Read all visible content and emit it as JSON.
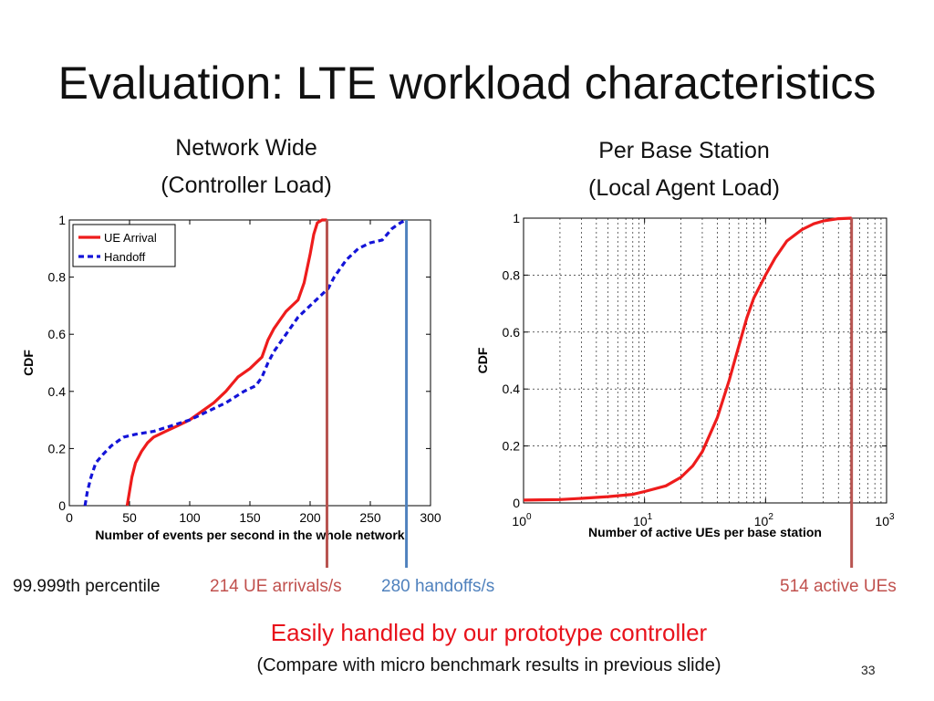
{
  "slide": {
    "title": "Evaluation: LTE workload characteristics",
    "left_subtitle": [
      "Network Wide",
      "(Controller Load)"
    ],
    "right_subtitle": [
      "Per Base Station",
      "(Local Agent Load)"
    ],
    "percentile_label": "99.999th percentile",
    "ue_arrivals": "214 UE arrivals/s",
    "handoffs": "280 handoffs/s",
    "active_ues": "514 active UEs",
    "highlight": "Easily handled by our prototype controller",
    "compare": "(Compare with micro benchmark results in previous slide)",
    "page_number": "33"
  },
  "colors": {
    "red_curve": "#ee1c1c",
    "blue_curve": "#1414d8",
    "red_marker": "#b85450",
    "blue_marker": "#4f81bd",
    "red_text": "#c0504d",
    "blue_text": "#4f81bd",
    "highlight_text": "#e8121b"
  },
  "chart_data": [
    {
      "type": "line",
      "xlabel": "Number of events per second in the whole network",
      "ylabel": "CDF",
      "xlim": [
        0,
        300
      ],
      "ylim": [
        0,
        1
      ],
      "xticks": [
        0,
        50,
        100,
        150,
        200,
        250,
        300
      ],
      "yticks": [
        "0",
        "0.2",
        "0.4",
        "0.6",
        "0.8",
        "1"
      ],
      "grid": false,
      "legend": "top-left",
      "series": [
        {
          "name": "UE Arrival",
          "style": "solid",
          "color": "#ee1c1c",
          "x": [
            48,
            50,
            52,
            55,
            60,
            65,
            70,
            80,
            90,
            100,
            110,
            120,
            130,
            140,
            150,
            160,
            165,
            170,
            175,
            180,
            185,
            190,
            195,
            200,
            203,
            206,
            210,
            214
          ],
          "y": [
            0,
            0.05,
            0.1,
            0.15,
            0.19,
            0.22,
            0.24,
            0.26,
            0.28,
            0.3,
            0.33,
            0.36,
            0.4,
            0.45,
            0.48,
            0.52,
            0.58,
            0.62,
            0.65,
            0.68,
            0.7,
            0.72,
            0.78,
            0.88,
            0.95,
            0.99,
            1.0,
            1.0
          ]
        },
        {
          "name": "Handoff",
          "style": "dashed",
          "color": "#1414d8",
          "x": [
            13,
            15,
            18,
            22,
            28,
            35,
            45,
            55,
            70,
            85,
            100,
            115,
            130,
            145,
            155,
            160,
            165,
            170,
            180,
            190,
            200,
            210,
            215,
            220,
            230,
            240,
            250,
            260,
            268,
            275,
            280
          ],
          "y": [
            0,
            0.05,
            0.1,
            0.15,
            0.18,
            0.21,
            0.24,
            0.25,
            0.26,
            0.28,
            0.3,
            0.33,
            0.36,
            0.4,
            0.42,
            0.45,
            0.5,
            0.54,
            0.6,
            0.66,
            0.7,
            0.74,
            0.76,
            0.8,
            0.86,
            0.9,
            0.92,
            0.93,
            0.97,
            0.99,
            1.0
          ]
        }
      ],
      "markers": [
        {
          "x": 214,
          "color": "#b85450"
        },
        {
          "x": 280,
          "color": "#4f81bd"
        }
      ]
    },
    {
      "type": "line",
      "xlabel": "Number of active UEs per base station",
      "ylabel": "CDF",
      "xscale": "log",
      "xlim": [
        1,
        1000
      ],
      "ylim": [
        0,
        1
      ],
      "xticks": [
        1,
        10,
        100,
        1000
      ],
      "yticks": [
        "0",
        "0.2",
        "0.4",
        "0.6",
        "0.8",
        "1"
      ],
      "grid": true,
      "legend": "none",
      "series": [
        {
          "style": "solid",
          "color": "#ee1c1c",
          "x": [
            1,
            2,
            3,
            5,
            8,
            10,
            15,
            20,
            25,
            30,
            40,
            50,
            60,
            70,
            80,
            100,
            120,
            150,
            200,
            250,
            300,
            400,
            514
          ],
          "y": [
            0.01,
            0.012,
            0.016,
            0.022,
            0.03,
            0.04,
            0.06,
            0.09,
            0.13,
            0.18,
            0.3,
            0.43,
            0.55,
            0.65,
            0.72,
            0.8,
            0.86,
            0.92,
            0.96,
            0.98,
            0.99,
            0.998,
            1.0
          ]
        }
      ],
      "markers": [
        {
          "x": 514,
          "color": "#b85450"
        }
      ]
    }
  ]
}
